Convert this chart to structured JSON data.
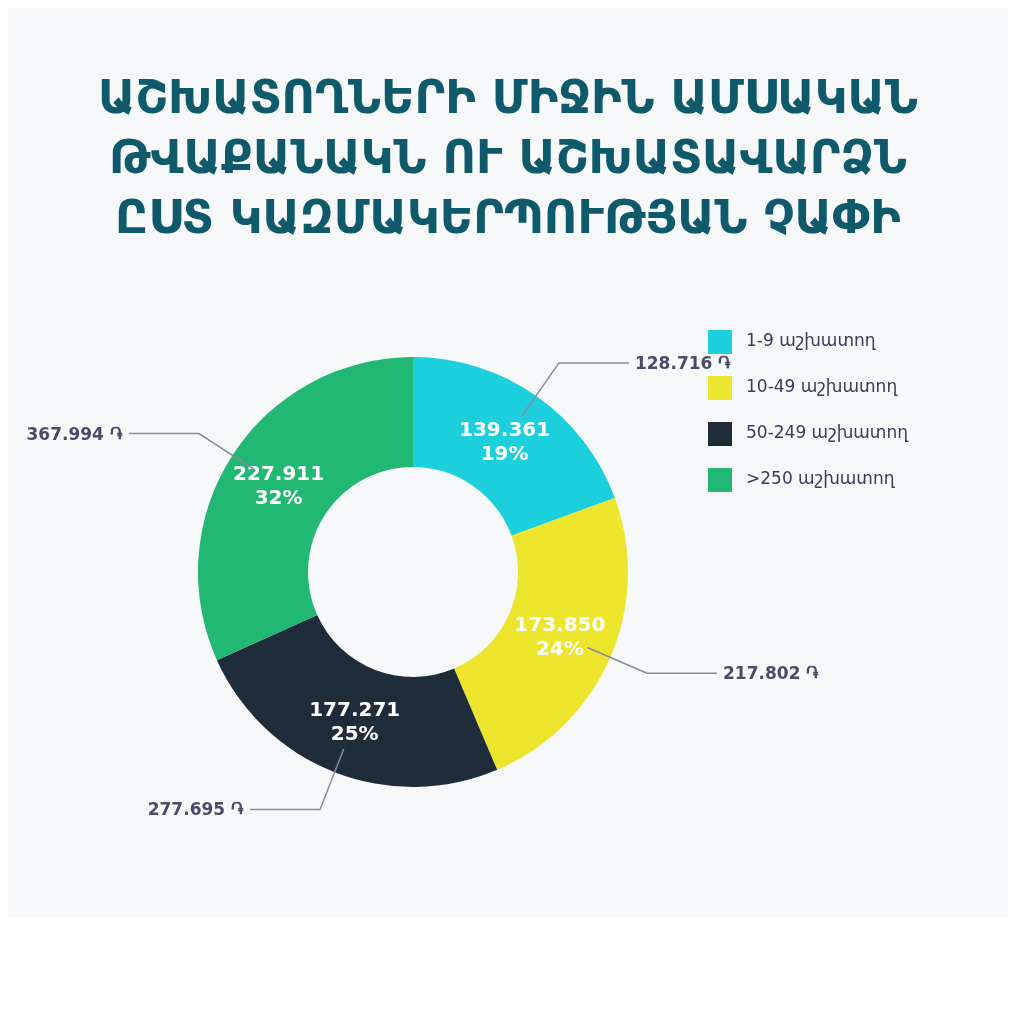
{
  "chart_data": {
    "type": "donut",
    "title": "ԱՇԽԱՏՈՂՆԵՐԻ ՄԻՋԻՆ ԱՄՍԱԿԱՆ ԹՎԱՔԱՆԱԿՆ ՈՒ ԱՇԽԱՏԱՎԱՐՁՆ ԸՍՏ ԿԱԶՄԱԿԵՐՊՈՒԹՅԱՆ ՉԱՓԻ",
    "categories": [
      "1-9 աշխատող",
      "10-49 աշխատող",
      "50-249 աշխատող",
      ">250 աշխատող"
    ],
    "values": [
      139.361,
      173.85,
      177.271,
      227.911
    ],
    "colors": [
      "#1ccfdc",
      "#ece52c",
      "#1f2d3a",
      "#21b873"
    ],
    "value_labels": [
      "139.361\n19%",
      "173.850\n24%",
      "177.271\n25%",
      "227.911\n32%"
    ],
    "annotations": [
      {
        "text": "128.716 ֏",
        "x": "1-9 աշխատող"
      },
      {
        "text": "217.802 ֏",
        "x": "10-49 աշխատող"
      },
      {
        "text": "277.695 ֏",
        "x": "50-249 աշխատող"
      },
      {
        "text": "367.994 ֏",
        "x": ">250 աշխատող"
      }
    ],
    "legend": "top right"
  }
}
